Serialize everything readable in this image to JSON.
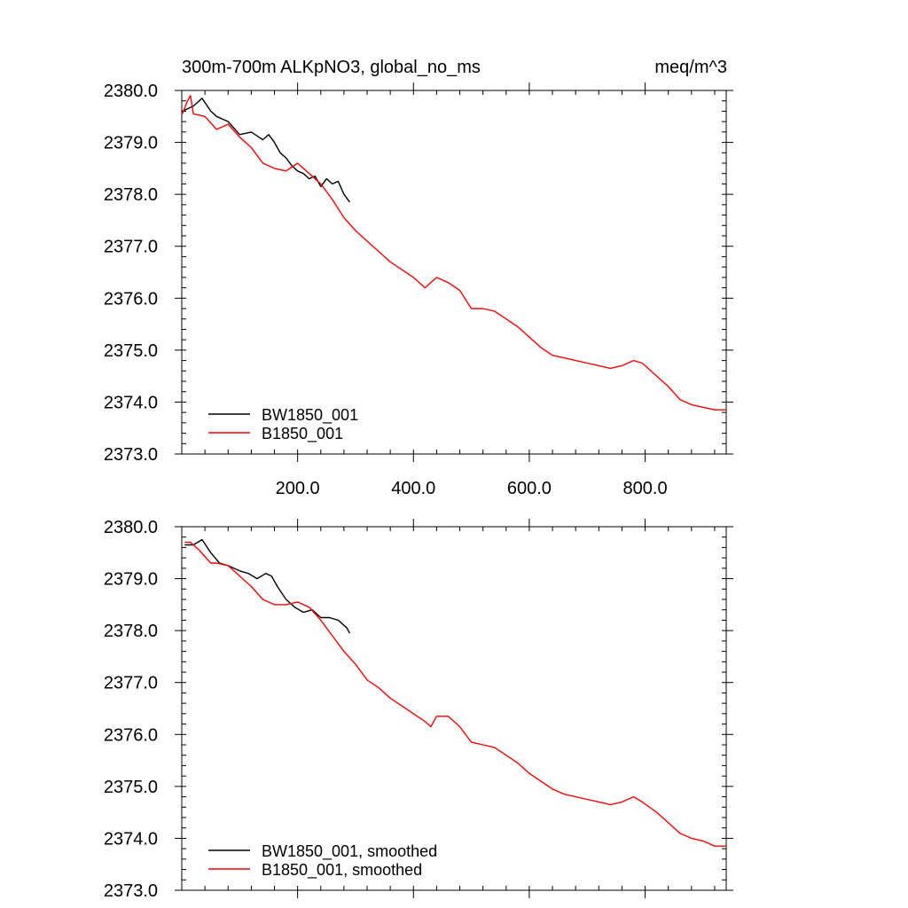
{
  "figure": {
    "title_left": "300m-700m ALKpNO3, global_no_ms",
    "title_right": "meq/m^3"
  },
  "chart_data": [
    {
      "type": "line",
      "xlim": [
        0,
        940
      ],
      "ylim": [
        2373.0,
        2380.0
      ],
      "y_ticks": [
        2373.0,
        2374.0,
        2375.0,
        2376.0,
        2377.0,
        2378.0,
        2379.0,
        2380.0
      ],
      "y_tick_labels": [
        "2373.0",
        "2374.0",
        "2375.0",
        "2376.0",
        "2377.0",
        "2378.0",
        "2379.0",
        "2380.0"
      ],
      "x_ticks": [
        200,
        400,
        600,
        800
      ],
      "x_tick_labels": [
        "200.0",
        "400.0",
        "600.0",
        "800.0"
      ],
      "legend": "bottom-left",
      "grid": false,
      "series": [
        {
          "name": "BW1850_001",
          "color": "#000000",
          "x": [
            1,
            20,
            35,
            50,
            60,
            80,
            100,
            120,
            140,
            150,
            160,
            170,
            180,
            190,
            200,
            210,
            220,
            230,
            240,
            250,
            260,
            270,
            280,
            290
          ],
          "y": [
            2379.6,
            2379.7,
            2379.85,
            2379.6,
            2379.5,
            2379.4,
            2379.15,
            2379.2,
            2379.05,
            2379.15,
            2379.0,
            2378.8,
            2378.7,
            2378.55,
            2378.45,
            2378.4,
            2378.3,
            2378.35,
            2378.15,
            2378.3,
            2378.2,
            2378.25,
            2378.0,
            2377.85
          ]
        },
        {
          "name": "B1850_001",
          "color": "#ff0000",
          "x": [
            1,
            10,
            15,
            20,
            40,
            60,
            80,
            100,
            120,
            140,
            160,
            180,
            200,
            220,
            240,
            260,
            280,
            300,
            320,
            340,
            360,
            380,
            400,
            420,
            440,
            460,
            480,
            500,
            520,
            540,
            560,
            580,
            600,
            620,
            640,
            660,
            680,
            700,
            720,
            740,
            760,
            780,
            795,
            820,
            840,
            860,
            880,
            900,
            920,
            940
          ],
          "y": [
            2379.55,
            2379.8,
            2379.9,
            2379.55,
            2379.5,
            2379.25,
            2379.35,
            2379.1,
            2378.9,
            2378.6,
            2378.5,
            2378.45,
            2378.6,
            2378.4,
            2378.2,
            2377.9,
            2377.55,
            2377.3,
            2377.1,
            2376.9,
            2376.7,
            2376.55,
            2376.4,
            2376.2,
            2376.4,
            2376.3,
            2376.15,
            2375.8,
            2375.8,
            2375.75,
            2375.6,
            2375.45,
            2375.25,
            2375.05,
            2374.9,
            2374.85,
            2374.8,
            2374.75,
            2374.7,
            2374.65,
            2374.7,
            2374.8,
            2374.75,
            2374.5,
            2374.3,
            2374.05,
            2373.95,
            2373.9,
            2373.85,
            2373.85
          ]
        }
      ]
    },
    {
      "type": "line",
      "xlim": [
        0,
        940
      ],
      "ylim": [
        2373.0,
        2380.0
      ],
      "y_ticks": [
        2373.0,
        2374.0,
        2375.0,
        2376.0,
        2377.0,
        2378.0,
        2379.0,
        2380.0
      ],
      "y_tick_labels": [
        "2373.0",
        "2374.0",
        "2375.0",
        "2376.0",
        "2377.0",
        "2378.0",
        "2379.0",
        "2380.0"
      ],
      "x_ticks": [
        200,
        400,
        600,
        800
      ],
      "x_tick_labels": [],
      "legend": "bottom-left",
      "grid": false,
      "series": [
        {
          "name": "BW1850_001, smoothed",
          "color": "#000000",
          "x": [
            5,
            20,
            35,
            50,
            65,
            80,
            100,
            115,
            130,
            145,
            155,
            165,
            180,
            195,
            210,
            225,
            240,
            255,
            270,
            285,
            290
          ],
          "y": [
            2379.65,
            2379.65,
            2379.75,
            2379.5,
            2379.3,
            2379.25,
            2379.15,
            2379.1,
            2379.0,
            2379.1,
            2379.05,
            2378.85,
            2378.6,
            2378.45,
            2378.35,
            2378.4,
            2378.25,
            2378.25,
            2378.2,
            2378.05,
            2377.95
          ]
        },
        {
          "name": "B1850_001, smoothed",
          "color": "#ff0000",
          "x": [
            5,
            15,
            30,
            50,
            60,
            80,
            100,
            120,
            140,
            160,
            180,
            200,
            220,
            240,
            260,
            280,
            300,
            320,
            340,
            360,
            380,
            400,
            420,
            430,
            440,
            460,
            480,
            500,
            520,
            540,
            560,
            580,
            600,
            620,
            640,
            660,
            680,
            700,
            720,
            740,
            760,
            780,
            795,
            820,
            840,
            860,
            880,
            900,
            920,
            940
          ],
          "y": [
            2379.7,
            2379.7,
            2379.55,
            2379.3,
            2379.3,
            2379.25,
            2379.05,
            2378.85,
            2378.6,
            2378.5,
            2378.5,
            2378.55,
            2378.45,
            2378.2,
            2377.9,
            2377.6,
            2377.35,
            2377.05,
            2376.9,
            2376.7,
            2376.55,
            2376.4,
            2376.25,
            2376.15,
            2376.35,
            2376.35,
            2376.15,
            2375.85,
            2375.8,
            2375.75,
            2375.6,
            2375.45,
            2375.25,
            2375.1,
            2374.95,
            2374.85,
            2374.8,
            2374.75,
            2374.7,
            2374.65,
            2374.7,
            2374.8,
            2374.7,
            2374.5,
            2374.3,
            2374.1,
            2374.0,
            2373.95,
            2373.85,
            2373.85
          ]
        }
      ]
    }
  ]
}
